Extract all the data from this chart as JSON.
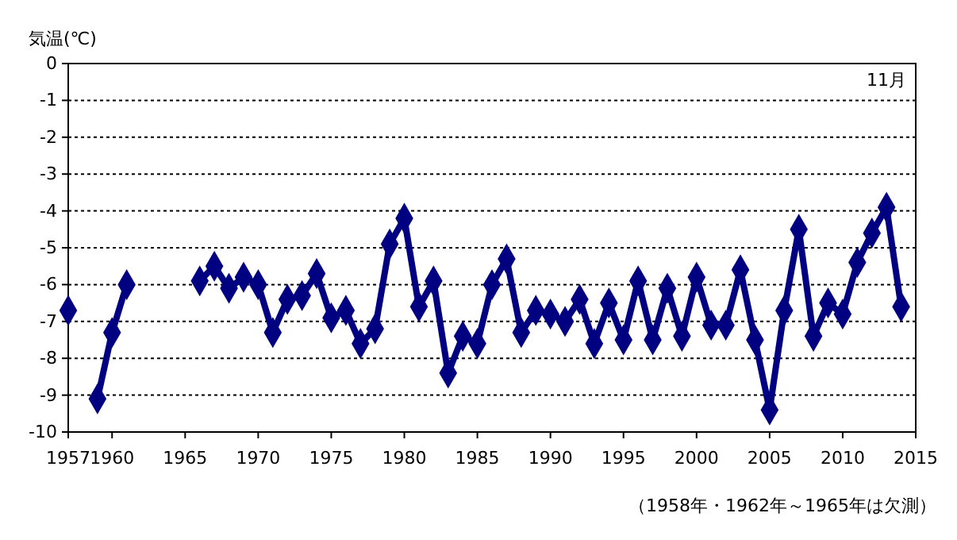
{
  "chart_data": {
    "type": "line",
    "ylabel": "気温(℃)",
    "annotations": [
      "11月",
      "（1958年・1962年～1965年は欠測）"
    ],
    "x": [
      1957,
      1958,
      1959,
      1960,
      1961,
      1962,
      1963,
      1964,
      1965,
      1966,
      1967,
      1968,
      1969,
      1970,
      1971,
      1972,
      1973,
      1974,
      1975,
      1976,
      1977,
      1978,
      1979,
      1980,
      1981,
      1982,
      1983,
      1984,
      1985,
      1986,
      1987,
      1988,
      1989,
      1990,
      1991,
      1992,
      1993,
      1994,
      1995,
      1996,
      1997,
      1998,
      1999,
      2000,
      2001,
      2002,
      2003,
      2004,
      2005,
      2006,
      2007,
      2008,
      2009,
      2010,
      2011,
      2012,
      2013,
      2014
    ],
    "series": [
      {
        "color": "#000080",
        "values": [
          -6.7,
          null,
          -9.1,
          -7.3,
          -6.0,
          null,
          null,
          null,
          null,
          -5.9,
          -5.5,
          -6.1,
          -5.8,
          -6.0,
          -7.3,
          -6.4,
          -6.3,
          -5.7,
          -6.9,
          -6.7,
          -7.6,
          -7.2,
          -4.9,
          -4.2,
          -6.6,
          -5.9,
          -8.4,
          -7.4,
          -7.6,
          -6.0,
          -5.3,
          -7.3,
          -6.7,
          -6.8,
          -7.0,
          -6.4,
          -7.6,
          -6.5,
          -7.5,
          -5.9,
          -7.5,
          -6.1,
          -7.4,
          -5.8,
          -7.1,
          -7.1,
          -5.6,
          -7.5,
          -9.4,
          -6.7,
          -4.5,
          -7.4,
          -6.5,
          -6.8,
          -5.4,
          -4.6,
          -3.9,
          -6.6
        ]
      }
    ],
    "xlim": [
      1957,
      2015
    ],
    "xticks": [
      1957,
      1960,
      1965,
      1970,
      1975,
      1980,
      1985,
      1990,
      1995,
      2000,
      2005,
      2010,
      2015
    ],
    "ylim": [
      -10,
      0
    ],
    "yticks": [
      -10,
      -9,
      -8,
      -7,
      -6,
      -5,
      -4,
      -3,
      -2,
      -1,
      0
    ],
    "grid": "y",
    "marker": "diamond",
    "line_style": "solid"
  }
}
